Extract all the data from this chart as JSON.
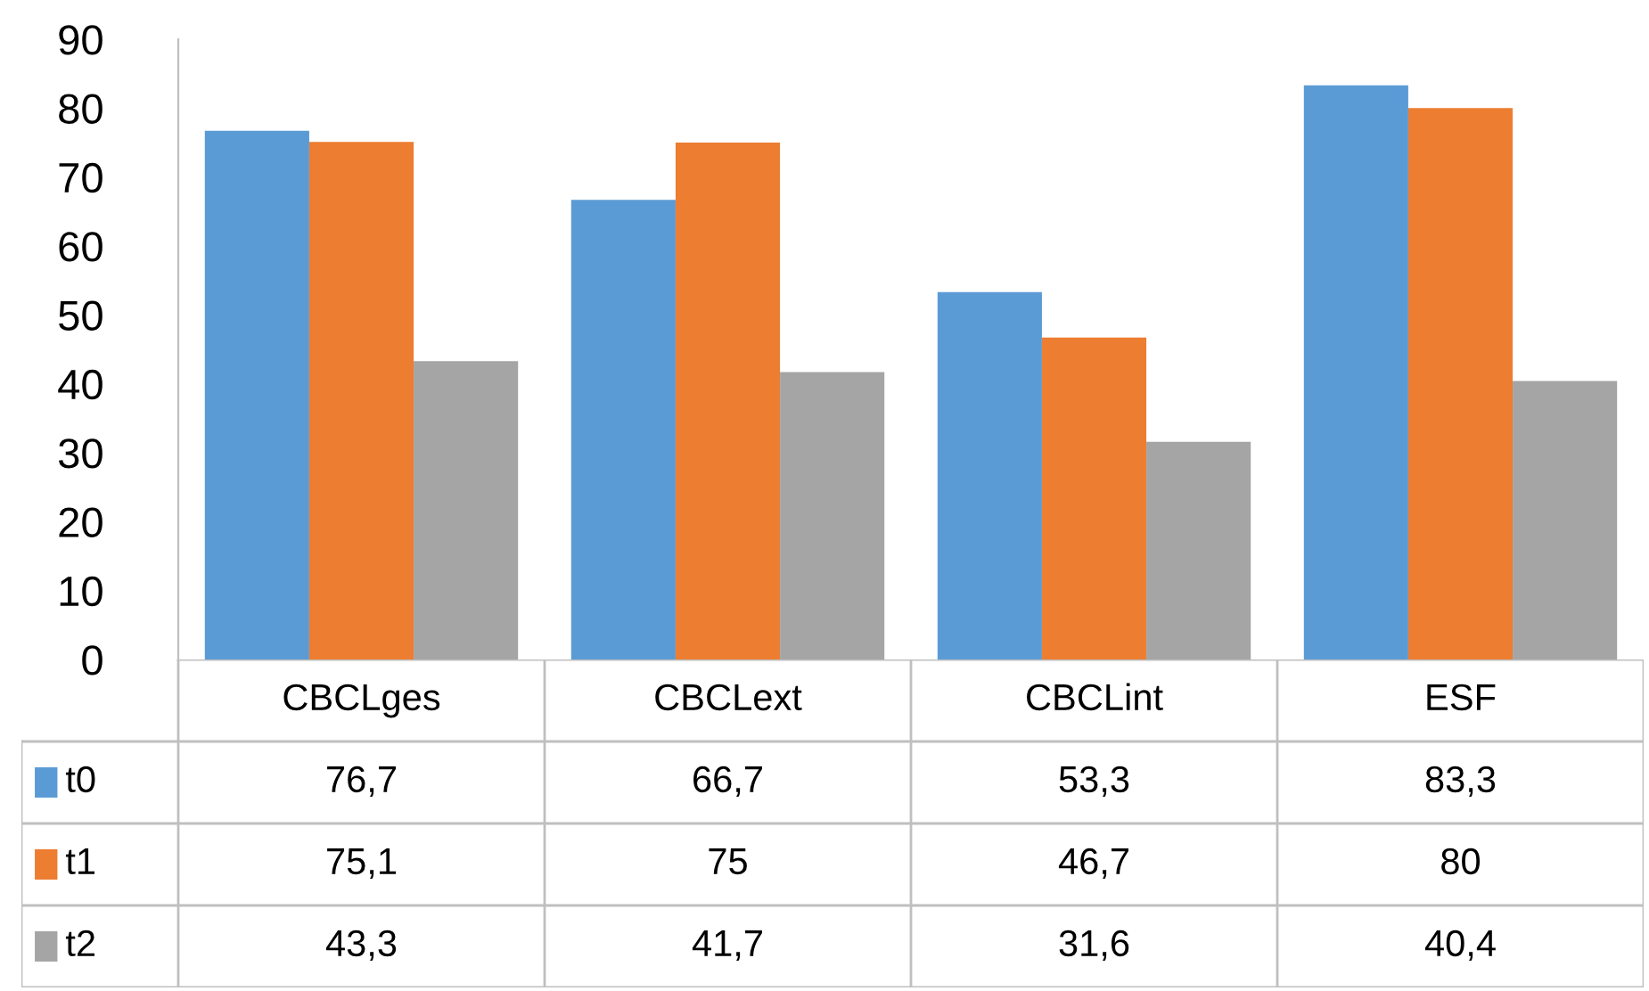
{
  "chart_data": {
    "type": "bar",
    "categories": [
      "CBCLges",
      "CBCLext",
      "CBCLint",
      "ESF"
    ],
    "series": [
      {
        "name": "t0",
        "color": "#5b9bd5",
        "values": [
          76.7,
          66.7,
          53.3,
          83.3
        ],
        "value_labels": [
          "76,7",
          "66,7",
          "53,3",
          "83,3"
        ]
      },
      {
        "name": "t1",
        "color": "#ed7d31",
        "values": [
          75.1,
          75,
          46.7,
          80
        ],
        "value_labels": [
          "75,1",
          "75",
          "46,7",
          "80"
        ]
      },
      {
        "name": "t2",
        "color": "#a5a5a5",
        "values": [
          43.3,
          41.7,
          31.6,
          40.4
        ],
        "value_labels": [
          "43,3",
          "41,7",
          "31,6",
          "40,4"
        ]
      }
    ],
    "ylim": [
      0,
      90
    ],
    "yticks": [
      0,
      10,
      20,
      30,
      40,
      50,
      60,
      70,
      80,
      90
    ],
    "grid": false,
    "legend": "bottom"
  }
}
